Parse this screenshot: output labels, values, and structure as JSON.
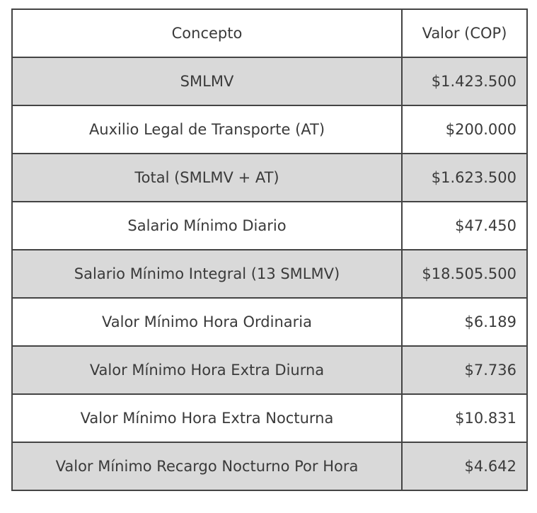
{
  "table": {
    "headers": [
      "Concepto",
      "Valor (COP)"
    ],
    "rows": [
      [
        "SMLMV",
        "$1.423.500"
      ],
      [
        "Auxilio Legal de Transporte (AT)",
        "$200.000"
      ],
      [
        "Total (SMLMV + AT)",
        "$1.623.500"
      ],
      [
        "Salario Mínimo Diario",
        "$47.450"
      ],
      [
        "Salario Mínimo Integral (13 SMLMV)",
        "$18.505.500"
      ],
      [
        "Valor Mínimo Hora Ordinaria",
        "$6.189"
      ],
      [
        "Valor Mínimo Hora Extra Diurna",
        "$7.736"
      ],
      [
        "Valor Mínimo Hora Extra Nocturna",
        "$10.831"
      ],
      [
        "Valor Mínimo Recargo Nocturno Por Hora",
        "$4.642"
      ]
    ],
    "stripe_color": "#d9d9d9",
    "border_color": "#444444"
  }
}
